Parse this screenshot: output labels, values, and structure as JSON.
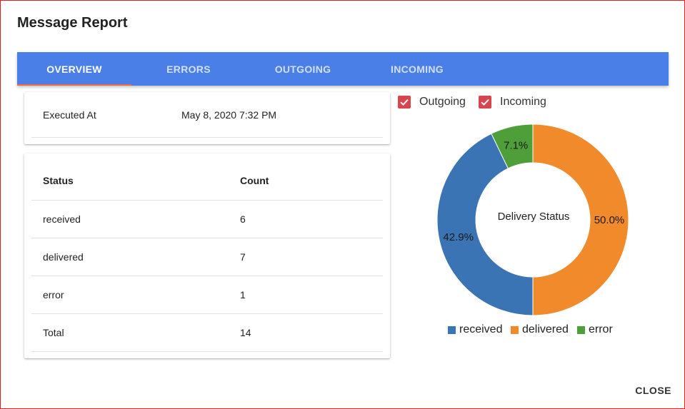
{
  "dialog": {
    "title": "Message Report",
    "close_label": "CLOSE"
  },
  "tabs": [
    {
      "label": "OVERVIEW",
      "active": true
    },
    {
      "label": "ERRORS",
      "active": false
    },
    {
      "label": "OUTGOING",
      "active": false
    },
    {
      "label": "INCOMING",
      "active": false
    }
  ],
  "executed": {
    "label": "Executed At",
    "value": "May 8, 2020 7:32 PM"
  },
  "status_table": {
    "columns": [
      "Status",
      "Count"
    ],
    "rows": [
      {
        "status": "received",
        "count": "6"
      },
      {
        "status": "delivered",
        "count": "7"
      },
      {
        "status": "error",
        "count": "1"
      },
      {
        "status": "Total",
        "count": "14"
      }
    ]
  },
  "filters": [
    {
      "label": "Outgoing",
      "checked": true
    },
    {
      "label": "Incoming",
      "checked": true
    }
  ],
  "colors": {
    "tab_bar": "#4a7fe8",
    "tab_indicator": "#f06a48",
    "checkbox": "#d9454c",
    "received": "#3a74b5",
    "delivered": "#f08a2a",
    "error": "#4e9e3a"
  },
  "chart_data": {
    "type": "pie",
    "variant": "donut",
    "title": "Delivery Status",
    "categories": [
      "received",
      "delivered",
      "error"
    ],
    "values": [
      6,
      7,
      1
    ],
    "data_labels": [
      "42.9%",
      "50.0%",
      "7.1%"
    ],
    "legend": "bottom",
    "colors": [
      "#3a74b5",
      "#f08a2a",
      "#4e9e3a"
    ]
  }
}
